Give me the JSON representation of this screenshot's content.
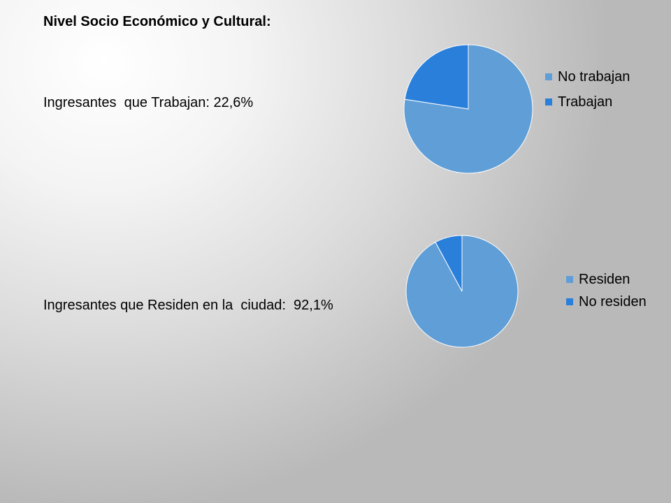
{
  "header": {
    "title": "Nivel Socio  Económico y Cultural:"
  },
  "stats": [
    {
      "label": "Ingresantes  que Trabajan: 22,6%"
    },
    {
      "label": "Ingresantes que Residen en la  ciudad:  92,1%"
    }
  ],
  "chart_data": [
    {
      "type": "pie",
      "title": "",
      "categories": [
        "No trabajan",
        "Trabajan"
      ],
      "values": [
        77.4,
        22.6
      ],
      "colors": [
        "#5f9ed6",
        "#2a7fdb"
      ],
      "legend": "right"
    },
    {
      "type": "pie",
      "title": "",
      "categories": [
        "Residen",
        "No residen"
      ],
      "values": [
        92.1,
        7.9
      ],
      "colors": [
        "#5f9ed6",
        "#2a7fdb"
      ],
      "legend": "right"
    }
  ]
}
